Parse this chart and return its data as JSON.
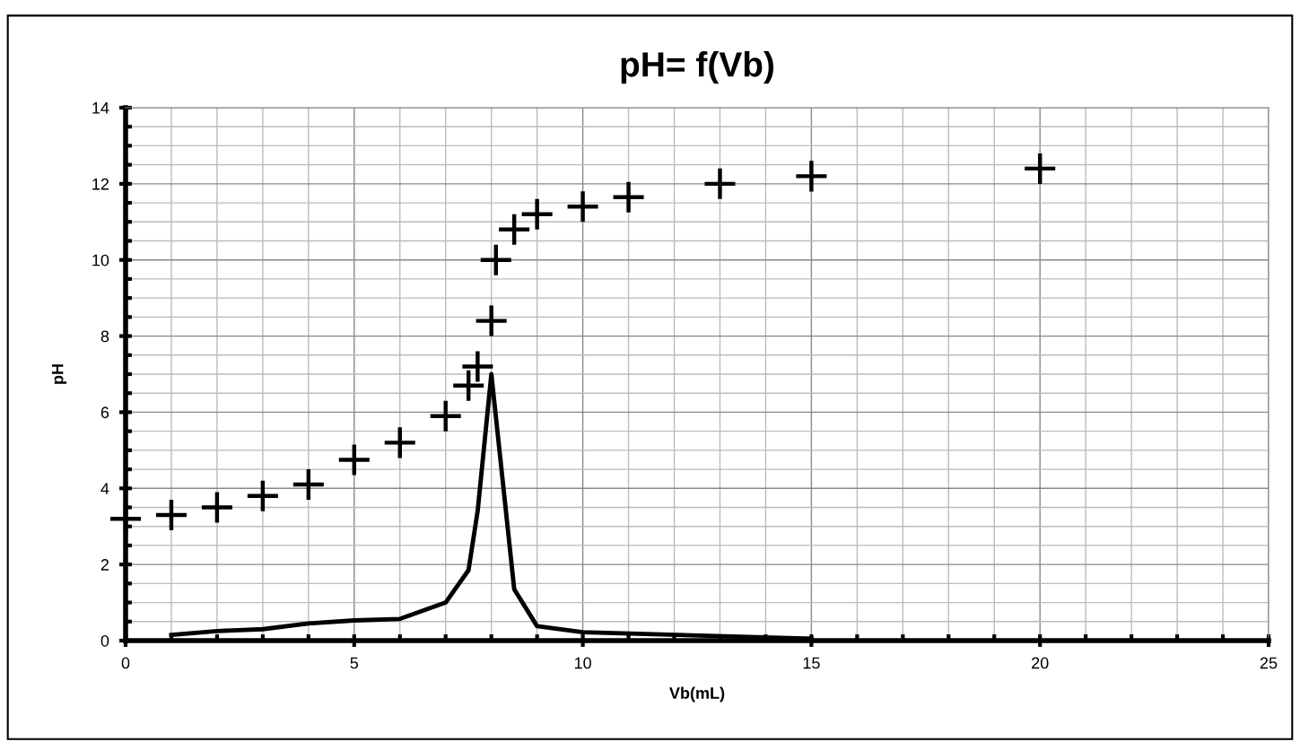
{
  "chart_data": {
    "type": "scatter",
    "title": "pH= f(Vb)",
    "xlabel": "Vb(mL)",
    "ylabel": "pH",
    "xlim": [
      0,
      25
    ],
    "xticks": [
      0,
      5,
      10,
      15,
      20,
      25
    ],
    "ylim": [
      0,
      14
    ],
    "yticks": [
      0,
      2,
      4,
      6,
      8,
      10,
      12,
      14
    ],
    "grid": true,
    "legend": false,
    "series": [
      {
        "marker": "cross",
        "color": "#000000",
        "x": [
          0,
          1,
          2,
          3,
          4,
          5,
          6,
          7,
          7.5,
          7.7,
          8,
          8.1,
          8.5,
          9,
          10,
          11,
          13,
          15,
          20
        ],
        "values": [
          3.2,
          3.3,
          3.5,
          3.8,
          4.1,
          4.75,
          5.2,
          5.9,
          6.7,
          7.2,
          8.4,
          10.0,
          10.8,
          11.2,
          11.4,
          11.65,
          12.0,
          12.2,
          12.4
        ]
      },
      {
        "type": "line",
        "marker": "none",
        "line_style": "solid",
        "color": "#000000",
        "x": [
          1,
          2,
          3,
          4,
          5,
          6,
          7,
          7.5,
          7.7,
          8,
          8.5,
          9,
          10,
          15
        ],
        "values": [
          0.15,
          0.25,
          0.3,
          0.45,
          0.53,
          0.57,
          1.0,
          1.85,
          3.4,
          7.0,
          1.35,
          0.38,
          0.22,
          0.05
        ]
      }
    ]
  }
}
